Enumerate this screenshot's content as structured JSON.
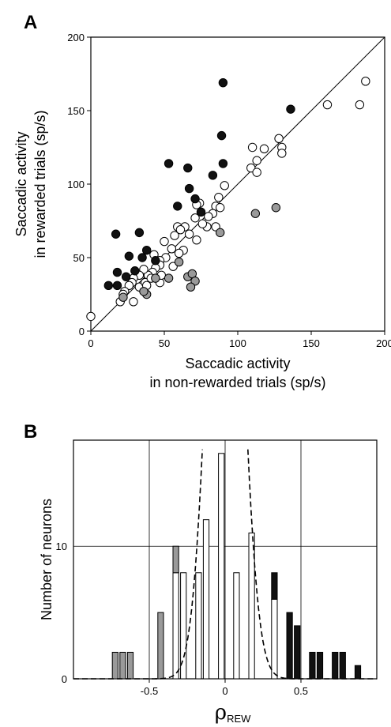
{
  "panels": {
    "a_letter": "A",
    "b_letter": "B"
  },
  "colors": {
    "black": "#111111",
    "gray": "#9a9a9a",
    "white": "#ffffff"
  },
  "chart_data": [
    {
      "type": "scatter",
      "panel": "A",
      "xlabel": [
        "Saccadic activity",
        "in non-rewarded trials (sp/s)"
      ],
      "ylabel": [
        "Saccadic activity",
        "in rewarded trials (sp/s)"
      ],
      "xlim": [
        0,
        200
      ],
      "ylim": [
        0,
        200
      ],
      "xticks": [
        0,
        50,
        100,
        150,
        200
      ],
      "yticks": [
        0,
        50,
        100,
        150,
        200
      ],
      "diagonal": "y = x",
      "grid": false,
      "series": [
        {
          "fill": "black",
          "points": [
            [
              90,
              169
            ],
            [
              136,
              151
            ],
            [
              89,
              133
            ],
            [
              53,
              114
            ],
            [
              90,
              114
            ],
            [
              66,
              111
            ],
            [
              83,
              106
            ],
            [
              67,
              97
            ],
            [
              59,
              85
            ],
            [
              71,
              90
            ],
            [
              75,
              81
            ],
            [
              17,
              66
            ],
            [
              33,
              67
            ],
            [
              26,
              51
            ],
            [
              38,
              55
            ],
            [
              44,
              48
            ],
            [
              35,
              50
            ],
            [
              18,
              40
            ],
            [
              30,
              41
            ],
            [
              24,
              37
            ],
            [
              12,
              31
            ],
            [
              18,
              31
            ]
          ]
        },
        {
          "fill": "gray",
          "points": [
            [
              112,
              80
            ],
            [
              126,
              84
            ],
            [
              88,
              67
            ],
            [
              60,
              47
            ],
            [
              66,
              37
            ],
            [
              69,
              39
            ],
            [
              71,
              34
            ],
            [
              68,
              30
            ],
            [
              53,
              36
            ],
            [
              44,
              36
            ],
            [
              38,
              25
            ],
            [
              36,
              27
            ],
            [
              22,
              23
            ]
          ]
        },
        {
          "fill": "white",
          "points": [
            [
              0,
              10
            ],
            [
              187,
              170
            ],
            [
              183,
              154
            ],
            [
              161,
              154
            ],
            [
              128,
              131
            ],
            [
              130,
              125
            ],
            [
              130,
              121
            ],
            [
              118,
              124
            ],
            [
              110,
              125
            ],
            [
              109,
              111
            ],
            [
              113,
              116
            ],
            [
              113,
              108
            ],
            [
              91,
              99
            ],
            [
              87,
              91
            ],
            [
              85,
              85
            ],
            [
              88,
              84
            ],
            [
              83,
              80
            ],
            [
              80,
              78
            ],
            [
              85,
              71
            ],
            [
              79,
              71
            ],
            [
              76,
              73
            ],
            [
              71,
              77
            ],
            [
              74,
              87
            ],
            [
              72,
              86
            ],
            [
              64,
              71
            ],
            [
              59,
              71
            ],
            [
              61,
              69
            ],
            [
              67,
              66
            ],
            [
              57,
              65
            ],
            [
              50,
              61
            ],
            [
              63,
              55
            ],
            [
              60,
              53
            ],
            [
              72,
              62
            ],
            [
              55,
              56
            ],
            [
              51,
              50
            ],
            [
              47,
              48
            ],
            [
              43,
              52
            ],
            [
              47,
              45
            ],
            [
              44,
              43
            ],
            [
              42,
              40
            ],
            [
              39,
              38
            ],
            [
              36,
              42
            ],
            [
              33,
              38
            ],
            [
              29,
              36
            ],
            [
              28,
              33
            ],
            [
              26,
              31
            ],
            [
              23,
              27
            ],
            [
              22,
              25
            ],
            [
              20,
              20
            ],
            [
              29,
              20
            ],
            [
              33,
              30
            ],
            [
              37,
              33
            ],
            [
              41,
              36
            ],
            [
              38,
              31
            ],
            [
              47,
              33
            ],
            [
              56,
              44
            ],
            [
              48,
              38
            ]
          ]
        }
      ]
    },
    {
      "type": "bar",
      "panel": "B",
      "xlabel": "ρ",
      "xlabel_sub": "REW",
      "ylabel": "Number of neurons",
      "xlim": [
        -1.0,
        1.0
      ],
      "ylim": [
        0,
        18
      ],
      "xticks": [
        -0.5,
        0,
        0.5
      ],
      "xtick_labels": [
        "-0.5",
        "0",
        "0.5"
      ],
      "yticks": [
        0,
        10
      ],
      "ytick_labels": [
        "0",
        "10"
      ],
      "grid": true,
      "bin_width": 0.05,
      "bars": [
        {
          "x": -0.725,
          "white": 0,
          "gray": 2,
          "black": 0
        },
        {
          "x": -0.675,
          "white": 0,
          "gray": 2,
          "black": 0
        },
        {
          "x": -0.625,
          "white": 0,
          "gray": 2,
          "black": 0
        },
        {
          "x": -0.425,
          "white": 0,
          "gray": 5,
          "black": 0
        },
        {
          "x": -0.325,
          "white": 8,
          "gray": 2,
          "black": 0
        },
        {
          "x": -0.275,
          "white": 8,
          "gray": 0,
          "black": 0
        },
        {
          "x": -0.175,
          "white": 8,
          "gray": 0,
          "black": 0
        },
        {
          "x": -0.125,
          "white": 12,
          "gray": 0,
          "black": 0
        },
        {
          "x": -0.025,
          "white": 17,
          "gray": 0,
          "black": 0
        },
        {
          "x": 0.075,
          "white": 8,
          "gray": 0,
          "black": 0
        },
        {
          "x": 0.175,
          "white": 11,
          "gray": 0,
          "black": 0
        },
        {
          "x": 0.325,
          "white": 6,
          "gray": 0,
          "black": 2
        },
        {
          "x": 0.425,
          "white": 0,
          "gray": 0,
          "black": 5
        },
        {
          "x": 0.475,
          "white": 0,
          "gray": 0,
          "black": 4
        },
        {
          "x": 0.575,
          "white": 0,
          "gray": 0,
          "black": 2
        },
        {
          "x": 0.625,
          "white": 0,
          "gray": 0,
          "black": 2
        },
        {
          "x": 0.725,
          "white": 0,
          "gray": 0,
          "black": 2
        },
        {
          "x": 0.775,
          "white": 0,
          "gray": 0,
          "black": 2
        },
        {
          "x": 0.875,
          "white": 0,
          "gray": 0,
          "black": 1
        }
      ],
      "null_distribution": "dashed Gaussian curve centered at 0"
    }
  ]
}
